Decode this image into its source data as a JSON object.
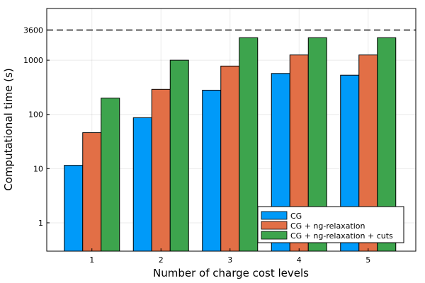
{
  "chart_data": {
    "type": "bar",
    "xlabel": "Number of charge cost levels",
    "ylabel": "Computational time (s)",
    "y_scale": "log",
    "ylim": [
      0.3,
      9000
    ],
    "categories": [
      "1",
      "2",
      "3",
      "4",
      "5"
    ],
    "y_ticks": [
      {
        "value": 1,
        "label": "1"
      },
      {
        "value": 10,
        "label": "10"
      },
      {
        "value": 100,
        "label": "100"
      },
      {
        "value": 1000,
        "label": "1000"
      },
      {
        "value": 3600,
        "label": "3600"
      }
    ],
    "reference_line": {
      "value": 3600,
      "style": "dashed"
    },
    "grid": true,
    "legend_position": "bottom-right",
    "series": [
      {
        "name": "CG",
        "color": "#009AF9",
        "values": [
          11.5,
          87,
          280,
          570,
          530
        ]
      },
      {
        "name": "CG + ng-relaxation",
        "color": "#E26F46",
        "values": [
          46,
          290,
          780,
          1250,
          1250
        ]
      },
      {
        "name": "CG + ng-relaxation + cuts",
        "color": "#3DA44D",
        "values": [
          200,
          1000,
          2600,
          2600,
          2600
        ]
      }
    ]
  }
}
